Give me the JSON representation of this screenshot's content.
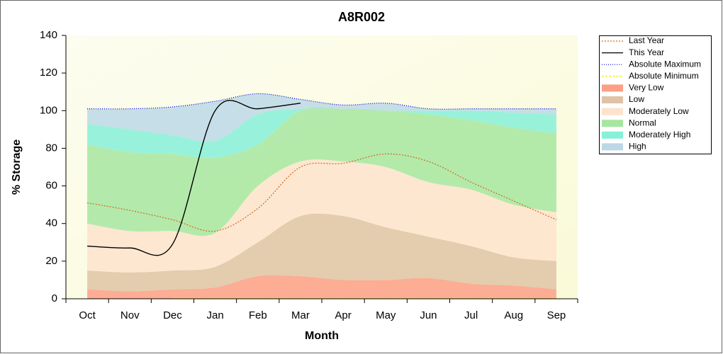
{
  "chart_data": {
    "type": "stacked-area-line",
    "title": "A8R002",
    "x_label": "Month",
    "y_label": "% Storage",
    "categories": [
      "Oct",
      "Nov",
      "Dec",
      "Jan",
      "Feb",
      "Mar",
      "Apr",
      "May",
      "Jun",
      "Jul",
      "Aug",
      "Sep"
    ],
    "ylim": [
      0,
      140
    ],
    "yticks": [
      0,
      20,
      40,
      60,
      80,
      100,
      120,
      140
    ],
    "series": [
      {
        "name": "Last Year",
        "kind": "line",
        "dash": "2,2",
        "color": "#d2691e",
        "values": [
          51,
          47,
          42,
          36,
          48,
          70,
          72,
          77,
          73,
          62,
          52,
          42
        ]
      },
      {
        "name": "This Year",
        "kind": "line",
        "dash": "none",
        "color": "#000000",
        "values": [
          28,
          27,
          29,
          100,
          101,
          104,
          null,
          null,
          null,
          null,
          null,
          null
        ]
      },
      {
        "name": "Absolute Maximum",
        "kind": "line",
        "dash": "1,2",
        "color": "#0000cc",
        "values": [
          101,
          101,
          102,
          105,
          109,
          106,
          103,
          104,
          101,
          101,
          101,
          101
        ]
      },
      {
        "name": "Absolute Minimum",
        "kind": "line",
        "dash": "3,2",
        "color": "#e8e800",
        "values": [
          null,
          null,
          0.5,
          0.5,
          0.5,
          0.5,
          0.5,
          0.5,
          0.5,
          0.5,
          0.5,
          0.5
        ]
      },
      {
        "name": "Very Low",
        "kind": "area",
        "color": "#fb9f86",
        "values": [
          5,
          4,
          5,
          6,
          12,
          12,
          10,
          10,
          11,
          8,
          7,
          5
        ]
      },
      {
        "name": "Low",
        "kind": "area",
        "color": "#dfc3a6",
        "values": [
          10,
          10,
          10,
          11,
          18,
          32,
          34,
          28,
          22,
          20,
          15,
          15
        ]
      },
      {
        "name": "Moderately Low",
        "kind": "area",
        "color": "#fde3cc",
        "values": [
          25,
          22,
          21,
          18,
          30,
          29,
          29,
          32,
          29,
          30,
          28,
          26
        ]
      },
      {
        "name": "Normal",
        "kind": "area",
        "color": "#a6e6a0",
        "values": [
          42,
          42,
          41,
          40,
          22,
          27,
          28,
          30,
          36,
          37,
          41,
          42
        ]
      },
      {
        "name": "Moderately High",
        "kind": "area",
        "color": "#86f0d8",
        "values": [
          11,
          12,
          10,
          9,
          16,
          1,
          0,
          0,
          2,
          5,
          8,
          10
        ]
      },
      {
        "name": "High",
        "kind": "area",
        "color": "#bcd8e6",
        "values": [
          8,
          11,
          15,
          21,
          11,
          5,
          2,
          4,
          1,
          1,
          2,
          3
        ]
      }
    ]
  }
}
